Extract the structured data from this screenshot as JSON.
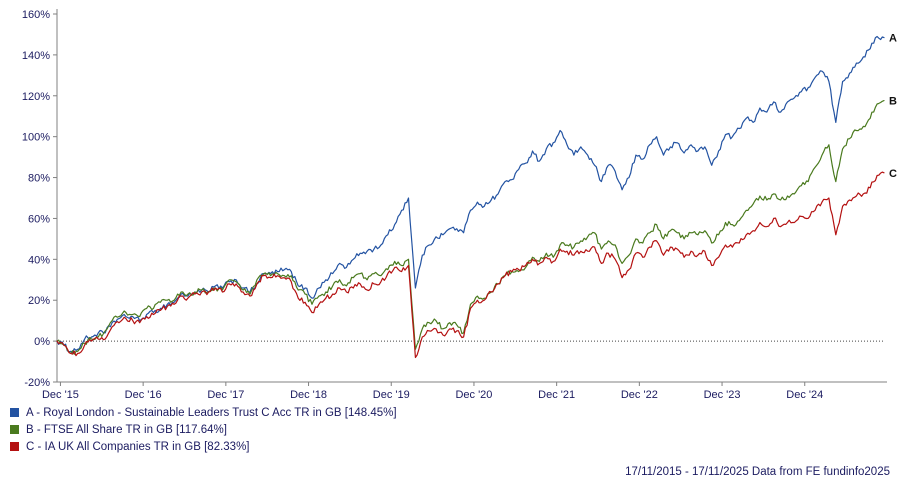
{
  "chart_data": {
    "type": "line",
    "title": "",
    "x_tick_labels": [
      "Dec '15",
      "Dec '16",
      "Dec '17",
      "Dec '18",
      "Dec '19",
      "Dec '20",
      "Dec '21",
      "Dec '22",
      "Dec '23",
      "Dec '24"
    ],
    "y_tick_labels": [
      "160%",
      "140%",
      "120%",
      "100%",
      "80%",
      "60%",
      "40%",
      "20%",
      "0%",
      "-20%"
    ],
    "ylim": [
      -20,
      160
    ],
    "x_range_years": [
      2015.875,
      2025.875
    ],
    "x_sampling": "monthly",
    "grid": "zero-line-only",
    "legend_position": "bottom-left",
    "series": [
      {
        "letter": "A",
        "name": "Royal London - Sustainable Leaders Trust C Acc TR in GB",
        "final_value_label": "148.45%",
        "color": "#2353a2",
        "values": [
          0,
          -2,
          -5,
          -4,
          1,
          2,
          4,
          4,
          9,
          11,
          12,
          12,
          10,
          13,
          14,
          16,
          18,
          19,
          23,
          22,
          24,
          25,
          24,
          27,
          26,
          29,
          30,
          26,
          24,
          28,
          33,
          33,
          34,
          35,
          34,
          27,
          26,
          21,
          26,
          30,
          33,
          38,
          36,
          40,
          43,
          44,
          45,
          47,
          52,
          57,
          64,
          70,
          26,
          42,
          47,
          51,
          52,
          55,
          55,
          53,
          64,
          68,
          66,
          69,
          72,
          78,
          79,
          84,
          87,
          93,
          88,
          94,
          97,
          103,
          96,
          91,
          95,
          91,
          86,
          78,
          86,
          83,
          74,
          80,
          91,
          89,
          96,
          100,
          91,
          95,
          97,
          92,
          96,
          93,
          95,
          86,
          93,
          101,
          100,
          104,
          109,
          107,
          114,
          112,
          117,
          112,
          117,
          119,
          122,
          124,
          129,
          132,
          127,
          107,
          127,
          131,
          136,
          139,
          143,
          149,
          148.45
        ]
      },
      {
        "letter": "B",
        "name": "FTSE All Share TR in GB",
        "final_value_label": "117.64%",
        "color": "#4a7a1e",
        "values": [
          0,
          -2,
          -6,
          -5,
          -1,
          1,
          2,
          5,
          10,
          12,
          14,
          13,
          12,
          16,
          16,
          19,
          20,
          20,
          24,
          23,
          24,
          25,
          24,
          26,
          25,
          30,
          29,
          25,
          23,
          30,
          33,
          32,
          33,
          32,
          32,
          25,
          23,
          18,
          22,
          24,
          27,
          30,
          27,
          31,
          33,
          30,
          33,
          32,
          35,
          39,
          37,
          40,
          -4,
          6,
          9,
          10,
          6,
          9,
          8,
          4,
          18,
          22,
          21,
          24,
          28,
          32,
          34,
          34,
          36,
          41,
          39,
          43,
          41,
          47,
          47,
          46,
          49,
          51,
          53,
          45,
          49,
          47,
          38,
          42,
          50,
          48,
          53,
          57,
          50,
          54,
          53,
          50,
          53,
          52,
          54,
          48,
          52,
          58,
          57,
          59,
          64,
          67,
          71,
          69,
          72,
          69,
          71,
          72,
          76,
          78,
          85,
          91,
          96,
          78,
          94,
          99,
          103,
          105,
          109,
          116,
          117.64
        ]
      },
      {
        "letter": "C",
        "name": "IA UK All Companies TR in GB",
        "final_value_label": "82.33%",
        "color": "#b41111",
        "values": [
          0,
          -2,
          -6,
          -6,
          -2,
          0,
          1,
          1,
          7,
          9,
          11,
          10,
          9,
          12,
          13,
          15,
          17,
          18,
          22,
          21,
          23,
          24,
          24,
          26,
          24,
          28,
          28,
          24,
          22,
          28,
          32,
          31,
          32,
          31,
          29,
          21,
          19,
          14,
          18,
          21,
          23,
          26,
          24,
          26,
          28,
          25,
          28,
          29,
          33,
          36,
          34,
          37,
          -8,
          2,
          5,
          6,
          3,
          6,
          5,
          2,
          16,
          20,
          20,
          24,
          28,
          32,
          34,
          35,
          37,
          40,
          38,
          41,
          39,
          45,
          44,
          42,
          44,
          44,
          46,
          38,
          43,
          40,
          31,
          35,
          43,
          41,
          46,
          49,
          42,
          46,
          45,
          41,
          44,
          42,
          44,
          37,
          41,
          47,
          46,
          48,
          52,
          54,
          58,
          56,
          60,
          56,
          58,
          58,
          61,
          60,
          64,
          68,
          70,
          52,
          66,
          69,
          71,
          72,
          75,
          81,
          82.33
        ]
      }
    ]
  },
  "legend": {
    "items": [
      {
        "label": "A - Royal London - Sustainable Leaders Trust C Acc TR in GB [148.45%]"
      },
      {
        "label": "B - FTSE All Share TR in GB [117.64%]"
      },
      {
        "label": "C - IA UK All Companies TR in GB [82.33%]"
      }
    ]
  },
  "footer": {
    "text": "17/11/2015 - 17/11/2025 Data from FE fundinfo2025"
  },
  "colors": {
    "axis": "#808080",
    "zero_line": "#444444",
    "text": "#1b1b60"
  }
}
